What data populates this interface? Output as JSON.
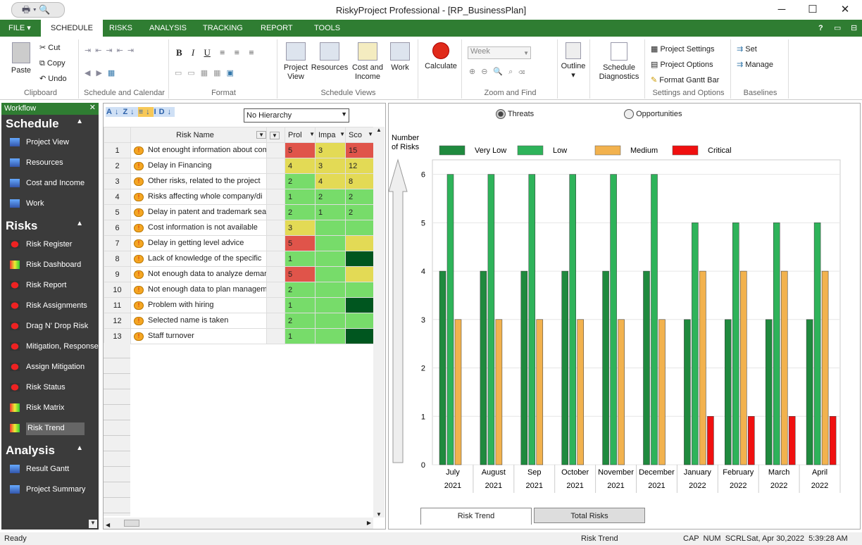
{
  "window": {
    "title": "RiskyProject Professional - [RP_BusinessPlan]",
    "minimize": "─",
    "maximize": "☐",
    "close": "✕"
  },
  "qat": {
    "icons": [
      "printer-icon",
      "print-preview-icon"
    ]
  },
  "tabs": [
    "FILE",
    "SCHEDULE",
    "RISKS",
    "ANALYSIS",
    "TRACKING",
    "REPORT",
    "TOOLS"
  ],
  "tab_right_icons": [
    "?",
    "▭",
    "⊟"
  ],
  "ribbon": {
    "clipboard": {
      "label": "Clipboard",
      "paste": "Paste",
      "cut": "Cut",
      "copy": "Copy",
      "undo": "Undo"
    },
    "schedule_calendar": {
      "label": "Schedule and Calendar"
    },
    "format": {
      "label": "Format",
      "bold": "B",
      "italic": "I",
      "underline": "U"
    },
    "views": {
      "label": "Schedule Views",
      "project_view": "Project View",
      "resources": "Resources",
      "cost_income": "Cost and Income",
      "work": "Work"
    },
    "calculate": "Calculate",
    "zoom": {
      "label": "Zoom and Find",
      "period": "Week"
    },
    "outline": "Outline",
    "diagnostics": "Schedule Diagnostics",
    "settings": {
      "label": "Settings and Options",
      "project_settings": "Project Settings",
      "project_options": "Project Options",
      "format_gantt": "Format Gantt Bar"
    },
    "baselines": {
      "label": "Baselines",
      "set": "Set",
      "manage": "Manage"
    }
  },
  "workflow": {
    "title": "Workflow",
    "sections": [
      {
        "label": "Schedule",
        "items": [
          "Project View",
          "Resources",
          "Cost and Income",
          "Work"
        ]
      },
      {
        "label": "Risks",
        "items": [
          "Risk Register",
          "Risk Dashboard",
          "Risk Report",
          "Risk Assignments",
          "Drag N' Drop Risk",
          "Mitigation, Response",
          "Assign Mitigation",
          "Risk Status",
          "Risk Matrix",
          "Risk Trend"
        ]
      },
      {
        "label": "Analysis",
        "items": [
          "Result Gantt",
          "Project Summary"
        ]
      }
    ],
    "selected": "Risk Trend"
  },
  "grid": {
    "hierarchy": "No Hierarchy",
    "columns": [
      "Risk Name",
      "",
      "Prol",
      "Impa",
      "Sco"
    ],
    "rows": [
      {
        "id": "1",
        "name": "Not enought information about com",
        "p": "5",
        "i": "3",
        "s": "15",
        "pc": "#e0544a",
        "ic": "#e3da55",
        "sc": "#e0544a"
      },
      {
        "id": "2",
        "name": "Delay in Financing",
        "p": "4",
        "i": "3",
        "s": "12",
        "pc": "#e3da55",
        "ic": "#e3da55",
        "sc": "#e3da55"
      },
      {
        "id": "3",
        "name": "Other risks, related to the project",
        "p": "2",
        "i": "4",
        "s": "8",
        "pc": "#77dc6a",
        "ic": "#e3da55",
        "sc": "#e3da55"
      },
      {
        "id": "4",
        "name": "Risks affecting whole company/di",
        "p": "1",
        "i": "2",
        "s": "2",
        "pc": "#77dc6a",
        "ic": "#77dc6a",
        "sc": "#77dc6a"
      },
      {
        "id": "5",
        "name": "Delay in patent and trademark sea",
        "p": "2",
        "i": "1",
        "s": "2",
        "pc": "#77dc6a",
        "ic": "#77dc6a",
        "sc": "#77dc6a"
      },
      {
        "id": "6",
        "name": "Cost information is not available",
        "p": "3",
        "i": "",
        "s": "",
        "pc": "#e3da55",
        "ic": "#77dc6a",
        "sc": "#77dc6a"
      },
      {
        "id": "7",
        "name": "Delay in getting level advice",
        "p": "5",
        "i": "",
        "s": "",
        "pc": "#e0544a",
        "ic": "#77dc6a",
        "sc": "#e3da55"
      },
      {
        "id": "8",
        "name": "Lack of knowledge of the specific",
        "p": "1",
        "i": "",
        "s": "",
        "pc": "#77dc6a",
        "ic": "#77dc6a",
        "sc": "#00561f"
      },
      {
        "id": "9",
        "name": "Not enough data to analyze demar",
        "p": "5",
        "i": "",
        "s": "",
        "pc": "#e0544a",
        "ic": "#77dc6a",
        "sc": "#e3da55"
      },
      {
        "id": "10",
        "name": "Not enough data to plan managem",
        "p": "2",
        "i": "",
        "s": "",
        "pc": "#77dc6a",
        "ic": "#77dc6a",
        "sc": "#77dc6a"
      },
      {
        "id": "11",
        "name": "Problem with hiring",
        "p": "1",
        "i": "",
        "s": "",
        "pc": "#77dc6a",
        "ic": "#77dc6a",
        "sc": "#00561f"
      },
      {
        "id": "12",
        "name": "Selected name is taken",
        "p": "2",
        "i": "",
        "s": "",
        "pc": "#77dc6a",
        "ic": "#77dc6a",
        "sc": "#77dc6a"
      },
      {
        "id": "13",
        "name": "Staff turnover",
        "p": "1",
        "i": "",
        "s": "",
        "pc": "#77dc6a",
        "ic": "#77dc6a",
        "sc": "#00561f"
      }
    ]
  },
  "chart_panel": {
    "threats": "Threats",
    "opportunities": "Opportunities",
    "selected": "Threats",
    "tabs": [
      "Risk Trend",
      "Total Risks"
    ]
  },
  "chart_data": {
    "type": "bar",
    "ylabel": "Number of Risks",
    "ylim": [
      0,
      6.3
    ],
    "yticks": [
      0,
      1,
      2,
      3,
      4,
      5,
      6
    ],
    "grid": true,
    "legend": "top",
    "categories": [
      [
        "July",
        "2021"
      ],
      [
        "August",
        "2021"
      ],
      [
        "Sep",
        "2021"
      ],
      [
        "October",
        "2021"
      ],
      [
        "November",
        "2021"
      ],
      [
        "December",
        "2021"
      ],
      [
        "January",
        "2022"
      ],
      [
        "February",
        "2022"
      ],
      [
        "March",
        "2022"
      ],
      [
        "April",
        "2022"
      ]
    ],
    "series": [
      {
        "name": "Very Low",
        "color": "#1f8a3e",
        "values": [
          4,
          4,
          4,
          4,
          4,
          4,
          3,
          3,
          3,
          3
        ]
      },
      {
        "name": "Low",
        "color": "#2eb35a",
        "values": [
          6,
          6,
          6,
          6,
          6,
          6,
          5,
          5,
          5,
          5
        ]
      },
      {
        "name": "Medium",
        "color": "#f2b24e",
        "values": [
          3,
          3,
          3,
          3,
          3,
          3,
          4,
          4,
          4,
          4
        ]
      },
      {
        "name": "Critical",
        "color": "#f01010",
        "values": [
          0,
          0,
          0,
          0,
          0,
          0,
          1,
          1,
          1,
          1
        ]
      }
    ]
  },
  "status": {
    "left": "Ready",
    "view": "Risk Trend",
    "keys": "CAP  NUM  SCRL",
    "datetime": "Sat, Apr 30,2022  5:39:28 AM"
  }
}
